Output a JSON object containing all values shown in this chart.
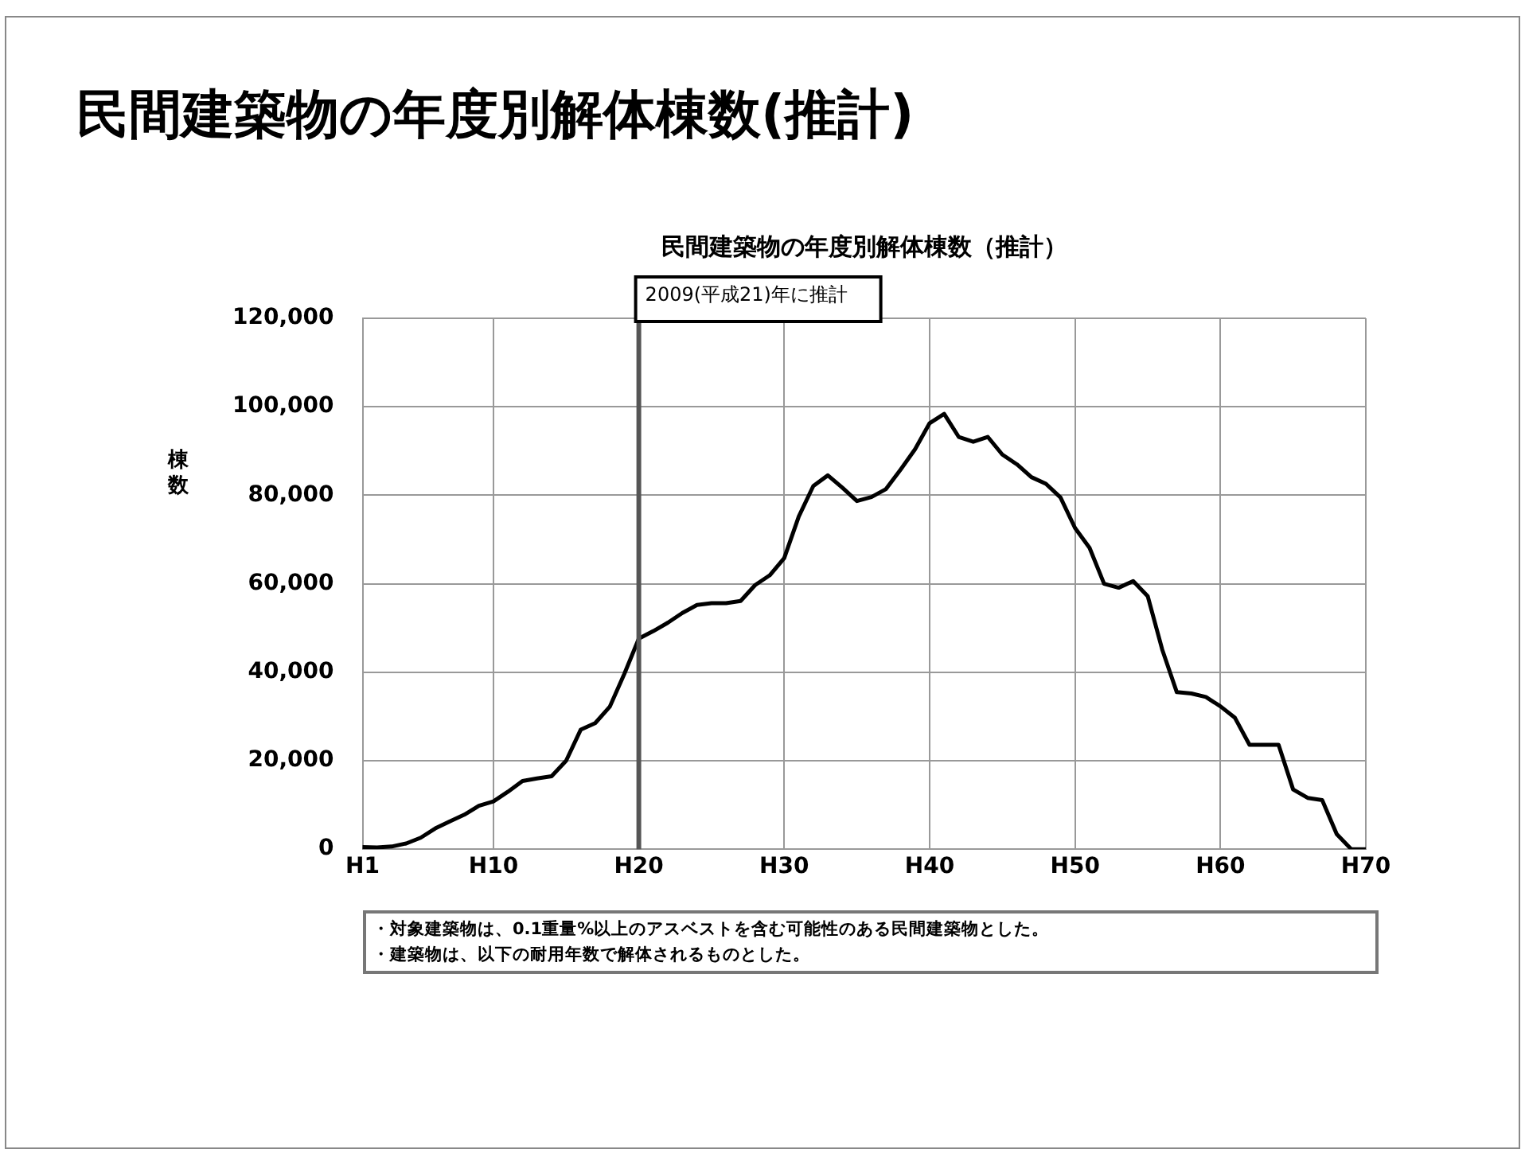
{
  "chart_data": {
    "type": "line",
    "title": "民間建築物の年度別解体棟数(推計)",
    "subtitle": "民間建築物の年度別解体棟数（推計）",
    "ylabel": "棟数",
    "categories": [
      "H1",
      null,
      null,
      null,
      null,
      null,
      null,
      null,
      null,
      "H10",
      null,
      null,
      null,
      null,
      null,
      null,
      null,
      null,
      null,
      "H20",
      null,
      null,
      null,
      null,
      null,
      null,
      null,
      null,
      null,
      "H30",
      null,
      null,
      null,
      null,
      null,
      null,
      null,
      null,
      null,
      "H40",
      null,
      null,
      null,
      null,
      null,
      null,
      null,
      null,
      null,
      "H50",
      null,
      null,
      null,
      null,
      null,
      null,
      null,
      null,
      null,
      "H60",
      null,
      null,
      null,
      null,
      null,
      null,
      null,
      null,
      null,
      "H70"
    ],
    "series": [
      {
        "color": "#000000",
        "values": [
          500,
          400,
          600,
          1300,
          2600,
          4700,
          6300,
          7800,
          9800,
          10800,
          13000,
          15400,
          16000,
          16500,
          20000,
          27000,
          28500,
          32200,
          39600,
          47600,
          49300,
          51200,
          53400,
          55200,
          55600,
          55600,
          56100,
          59700,
          61900,
          65800,
          75200,
          82100,
          84500,
          81700,
          78700,
          79600,
          81400,
          85800,
          90400,
          96300,
          98400,
          93200,
          92100,
          93200,
          89200,
          87000,
          84100,
          82600,
          79500,
          72600,
          68100,
          60000,
          59100,
          60600,
          57200,
          45100,
          35500,
          35200,
          34400,
          32300,
          29700,
          23600,
          23600,
          23600,
          13500,
          11600,
          11100,
          3400,
          0,
          0
        ]
      }
    ],
    "ylim": [
      0,
      120000
    ],
    "yticks": [
      {
        "value": 0,
        "label": "0"
      },
      {
        "value": 20000,
        "label": "20,000"
      },
      {
        "value": 40000,
        "label": "40,000"
      },
      {
        "value": 60000,
        "label": "60,000"
      },
      {
        "value": 80000,
        "label": "80,000"
      },
      {
        "value": 100000,
        "label": "100,000"
      },
      {
        "value": 120000,
        "label": "120,000"
      }
    ],
    "grid": true,
    "marker": "none",
    "line_style": "solid",
    "ref_lines": [
      {
        "axis": "x",
        "value": "H20",
        "label": "2009(平成21)年に推計",
        "color": "#555555"
      }
    ],
    "annotations": [
      "・対象建築物は、0.1重量%以上のアスベストを含む可能性のある民間建築物とした。",
      "・建築物は、以下の耐用年数で解体されるものとした。"
    ]
  }
}
